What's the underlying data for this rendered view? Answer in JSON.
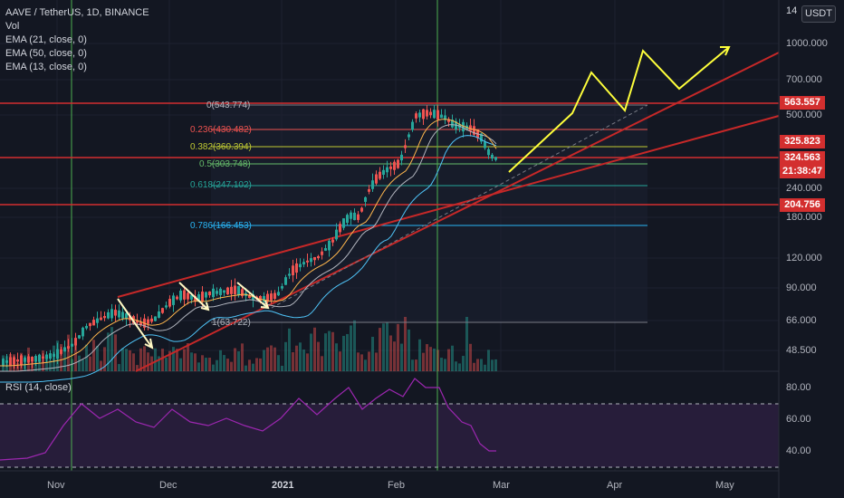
{
  "legend": {
    "symbol": "AAVE / TetherUS, 1D, BINANCE",
    "vol": "Vol",
    "ema21": "EMA (21, close, 0)",
    "ema50": "EMA (50, close, 0)",
    "ema13": "EMA (13, close, 0)"
  },
  "rsi": {
    "label": "RSI (14, close)",
    "ticks": [
      "80.00",
      "60.00",
      "40.00"
    ]
  },
  "currency": "USDT",
  "price_axis": {
    "top_tick": "14",
    "ticks": [
      "1000.000",
      "700.000",
      "500.000",
      "240.000",
      "180.000",
      "120.000",
      "90.000",
      "66.000",
      "48.500"
    ]
  },
  "badges": {
    "r563": "563.557",
    "r325": "325.823",
    "current": "324.563",
    "countdown": "21:38:47",
    "r204": "204.756"
  },
  "colors": {
    "background": "#131722",
    "up": "#26a69a",
    "down": "#ef5350",
    "resistance": "#d32f2f",
    "projection": "#ffff3b",
    "rsi_line": "#9c27b0"
  },
  "time_axis": [
    "Nov",
    "Dec",
    "2021",
    "Feb",
    "Mar",
    "Apr",
    "May"
  ],
  "fib": {
    "f0": "0(543.774)",
    "f236": "0.236(430.482)",
    "f382": "0.382(360.394)",
    "f5": "0.5(303.748)",
    "f618": "0.618(247.102)",
    "f786": "0.786(166.453)",
    "f1": "1(63.722)"
  }
}
